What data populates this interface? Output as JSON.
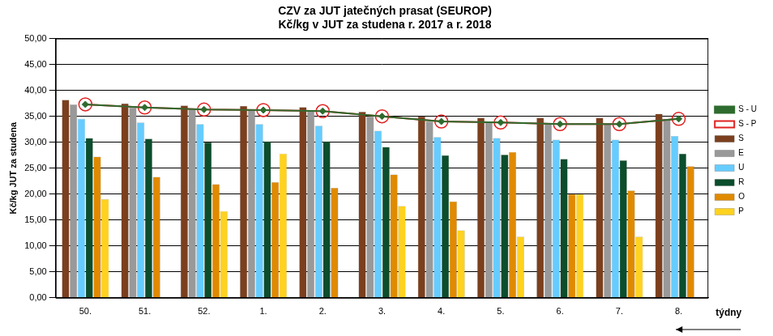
{
  "chart_data": {
    "type": "bar",
    "title": [
      "CZV za JUT jatečných prasat (SEUROP)",
      "Kč/kg v JUT za studena r. 2017 a r. 2018"
    ],
    "y_label": "Kč/kg JUT za studena",
    "x_label": "týdny",
    "categories": [
      "50.",
      "51.",
      "52.",
      "1.",
      "2.",
      "3.",
      "4.",
      "5.",
      "6.",
      "7.",
      "8."
    ],
    "series": [
      {
        "name": "S",
        "type": "bar",
        "color": "#7B3F1E",
        "values": [
          38.2,
          37.5,
          37.1,
          37.0,
          36.8,
          35.9,
          35.0,
          34.7,
          34.7,
          34.7,
          35.5
        ]
      },
      {
        "name": "E",
        "type": "bar",
        "color": "#999999",
        "values": [
          37.3,
          36.7,
          36.3,
          36.2,
          36.0,
          35.0,
          34.0,
          33.8,
          33.5,
          33.5,
          34.5
        ]
      },
      {
        "name": "U",
        "type": "bar",
        "color": "#66CCFF",
        "values": [
          34.5,
          33.8,
          33.5,
          33.5,
          33.2,
          32.2,
          31.0,
          30.8,
          30.5,
          30.5,
          31.2
        ]
      },
      {
        "name": "R",
        "type": "bar",
        "color": "#0B4D2C",
        "values": [
          30.8,
          30.7,
          30.0,
          30.2,
          30.2,
          29.1,
          27.5,
          27.6,
          26.8,
          26.5,
          27.8
        ]
      },
      {
        "name": "O",
        "type": "bar",
        "color": "#E08A00",
        "values": [
          27.2,
          23.3,
          21.9,
          22.3,
          21.2,
          23.8,
          18.6,
          28.1,
          20.0,
          20.7,
          25.4
        ]
      },
      {
        "name": "P",
        "type": "bar",
        "color": "#FFD21F",
        "values": [
          19.0,
          null,
          16.7,
          27.8,
          null,
          17.7,
          13.0,
          11.8,
          20.0,
          11.8,
          null
        ]
      },
      {
        "name": "S - P",
        "type": "line",
        "color": "#E02020",
        "marker": "circle",
        "values": [
          37.3,
          36.7,
          36.3,
          36.2,
          36.0,
          35.0,
          34.0,
          33.8,
          33.5,
          33.5,
          34.5
        ]
      },
      {
        "name": "S - U",
        "type": "line",
        "color": "#2E6B2E",
        "marker": "diamond",
        "values": [
          37.3,
          36.7,
          36.3,
          36.2,
          36.0,
          35.0,
          34.0,
          33.8,
          33.5,
          33.5,
          34.5
        ]
      }
    ],
    "ylim": [
      0,
      50
    ],
    "yticks": [
      {
        "value": 0,
        "label": "0,00"
      },
      {
        "value": 5,
        "label": "5,00"
      },
      {
        "value": 10,
        "label": "10,00"
      },
      {
        "value": 15,
        "label": "15,00"
      },
      {
        "value": 20,
        "label": "20,00"
      },
      {
        "value": 25,
        "label": "25,00"
      },
      {
        "value": 30,
        "label": "30,00"
      },
      {
        "value": 35,
        "label": "35,00"
      },
      {
        "value": 40,
        "label": "40,00"
      },
      {
        "value": 45,
        "label": "45,00"
      },
      {
        "value": 50,
        "label": "50,00"
      }
    ],
    "grid": true,
    "legend": "right"
  }
}
